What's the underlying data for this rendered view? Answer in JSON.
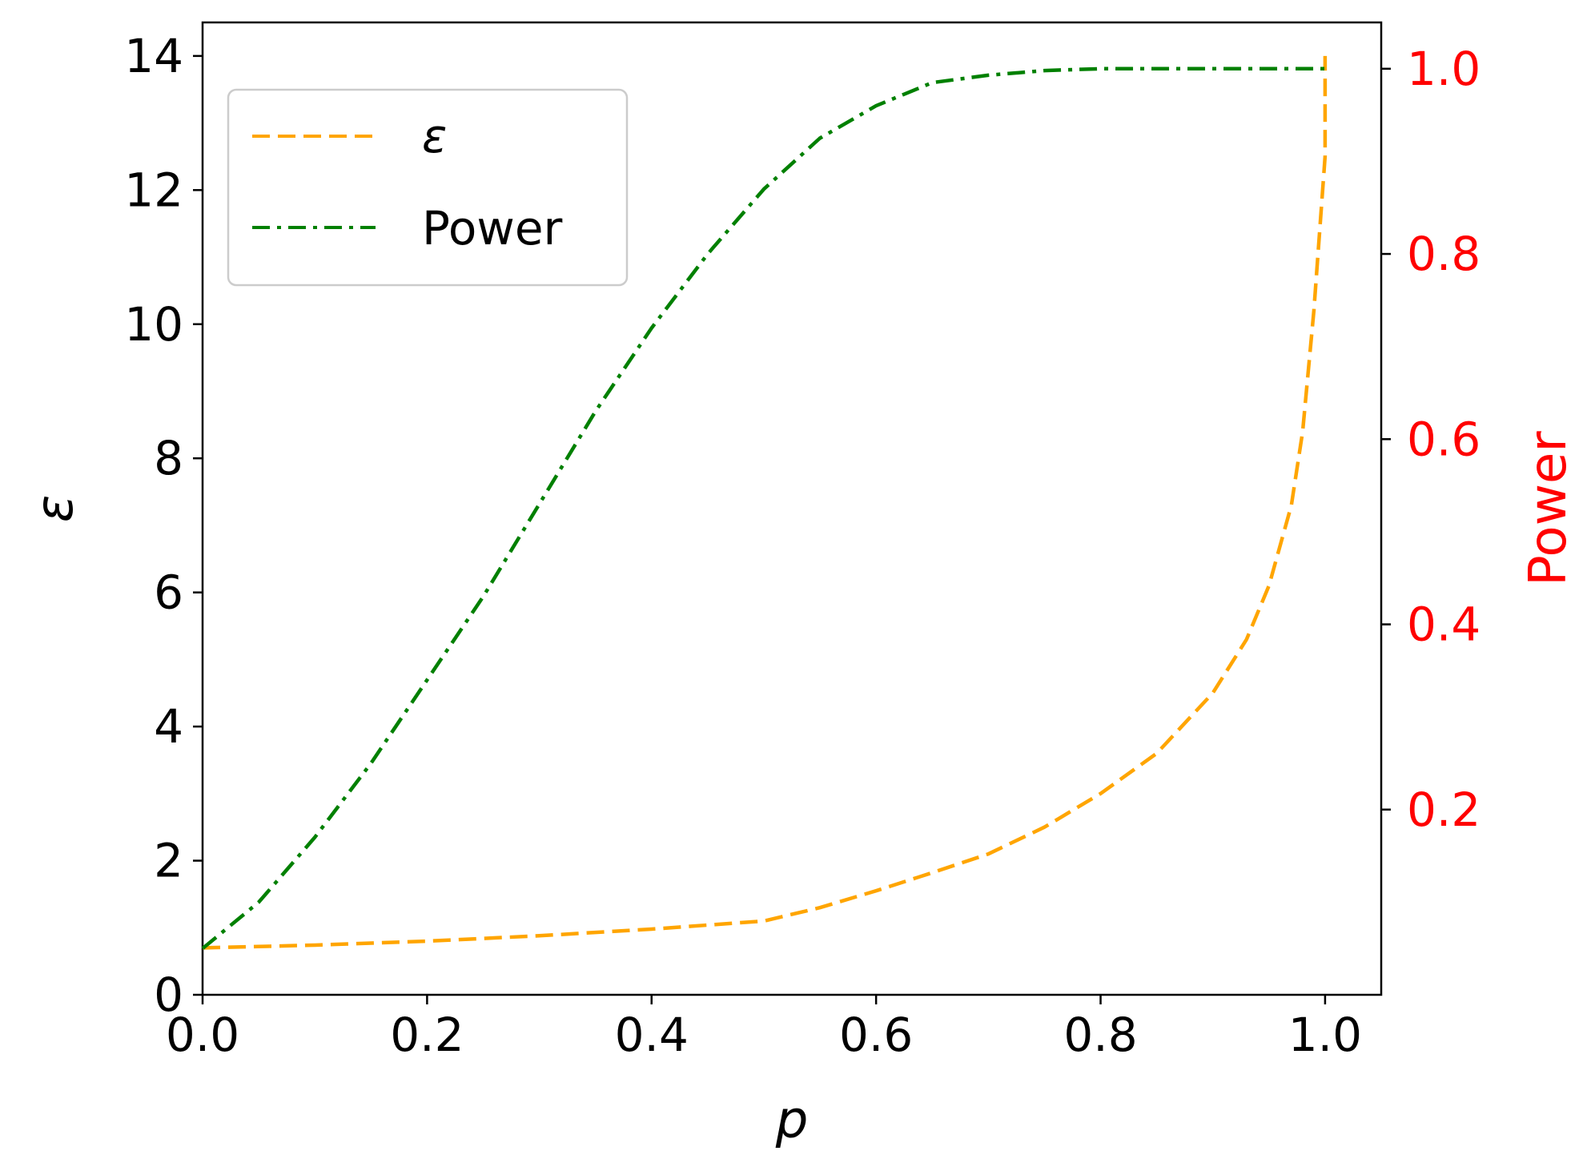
{
  "chart_data": {
    "type": "line",
    "xlabel": "p",
    "ylabel_left": "ε",
    "ylabel_right": "Power",
    "xlim": [
      0.0,
      1.05
    ],
    "ylim_left": [
      0,
      14.5
    ],
    "ylim_right": [
      0.0,
      1.05
    ],
    "x_ticks": [
      0.0,
      0.2,
      0.4,
      0.6,
      0.8,
      1.0
    ],
    "x_tick_labels": [
      "0.0",
      "0.2",
      "0.4",
      "0.6",
      "0.8",
      "1.0"
    ],
    "y_left_ticks": [
      0,
      2,
      4,
      6,
      8,
      10,
      12,
      14
    ],
    "y_left_tick_labels": [
      "0",
      "2",
      "4",
      "6",
      "8",
      "10",
      "12",
      "14"
    ],
    "y_right_ticks": [
      0.2,
      0.4,
      0.6,
      0.8,
      1.0
    ],
    "y_right_tick_labels": [
      "0.2",
      "0.4",
      "0.6",
      "0.8",
      "1.0"
    ],
    "right_axis_color": "#ff0000",
    "grid": false,
    "legend_position": "top-left",
    "series": [
      {
        "name": "ε",
        "axis": "left",
        "style": "dashed",
        "color": "#ffa500",
        "x": [
          0.0,
          0.1,
          0.2,
          0.3,
          0.4,
          0.5,
          0.55,
          0.6,
          0.65,
          0.7,
          0.75,
          0.8,
          0.85,
          0.9,
          0.93,
          0.95,
          0.97,
          0.98,
          0.99,
          1.0,
          1.0
        ],
        "y": [
          0.7,
          0.74,
          0.8,
          0.88,
          0.98,
          1.1,
          1.3,
          1.55,
          1.82,
          2.1,
          2.5,
          3.0,
          3.6,
          4.5,
          5.3,
          6.1,
          7.3,
          8.4,
          10.2,
          12.5,
          14.0
        ]
      },
      {
        "name": "Power",
        "axis": "right",
        "style": "dashdot",
        "color": "#008000",
        "x": [
          0.0,
          0.05,
          0.1,
          0.15,
          0.2,
          0.25,
          0.3,
          0.35,
          0.4,
          0.45,
          0.5,
          0.55,
          0.6,
          0.65,
          0.7,
          0.75,
          0.8,
          0.9,
          1.0
        ],
        "y": [
          0.05,
          0.1,
          0.17,
          0.25,
          0.34,
          0.43,
          0.53,
          0.63,
          0.72,
          0.8,
          0.87,
          0.925,
          0.96,
          0.985,
          0.993,
          0.998,
          1.0,
          1.0,
          1.0
        ]
      }
    ]
  }
}
